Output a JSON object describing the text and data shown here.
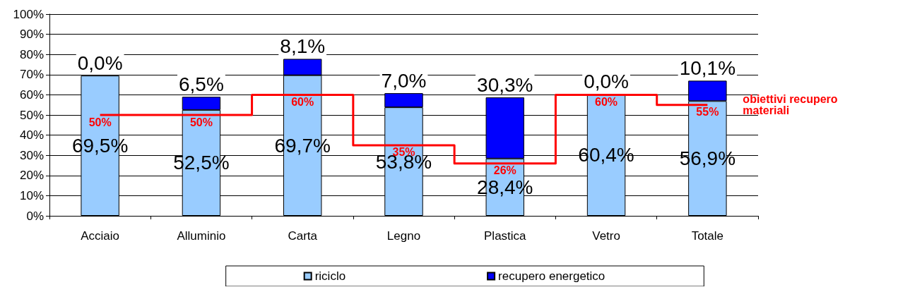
{
  "chart_data": {
    "type": "bar",
    "stacked": true,
    "categories": [
      "Acciaio",
      "Alluminio",
      "Carta",
      "Legno",
      "Plastica",
      "Vetro",
      "Totale"
    ],
    "series": [
      {
        "name": "riciclo",
        "color": "#99ccff",
        "values": [
          69.5,
          52.5,
          69.7,
          53.8,
          28.4,
          60.4,
          56.9
        ],
        "value_labels": [
          "69,5%",
          "52,5%",
          "69,7%",
          "53,8%",
          "28,4%",
          "60,4%",
          "56,9%"
        ]
      },
      {
        "name": "recupero energetico",
        "color": "#0000ff",
        "values": [
          0,
          6.5,
          8.1,
          7.0,
          30.3,
          0,
          10.1
        ],
        "value_labels": [
          "0,0%",
          "6,5%",
          "8,1%",
          "7,0%",
          "30,3%",
          "0,0%",
          "10,1%"
        ]
      },
      {
        "name": "obiettivi recupero materiali",
        "type": "step",
        "color": "#ff0000",
        "values": [
          50,
          50,
          60,
          35,
          26,
          60,
          55
        ],
        "value_labels": [
          "50%",
          "50%",
          "60%",
          "35%",
          "26%",
          "60%",
          "55%"
        ]
      }
    ],
    "ylim": [
      0,
      100
    ],
    "yticks": [
      {
        "value": 0,
        "label": "0%"
      },
      {
        "value": 10,
        "label": "10%"
      },
      {
        "value": 20,
        "label": "20%"
      },
      {
        "value": 30,
        "label": "30%"
      },
      {
        "value": 40,
        "label": "40%"
      },
      {
        "value": 50,
        "label": "50%"
      },
      {
        "value": 60,
        "label": "60%"
      },
      {
        "value": 70,
        "label": "70%"
      },
      {
        "value": 80,
        "label": "80%"
      },
      {
        "value": 90,
        "label": "90%"
      },
      {
        "value": 100,
        "label": "100%"
      }
    ],
    "grid": "y",
    "legend": "bottom",
    "marker": "none"
  }
}
